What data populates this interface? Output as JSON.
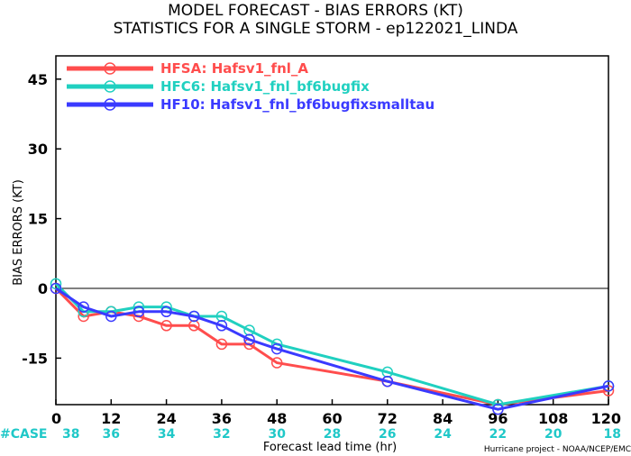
{
  "title_line1": "MODEL FORECAST - BIAS ERRORS (KT)",
  "title_line2": "STATISTICS FOR A SINGLE STORM - ep122021_LINDA",
  "ylabel": "BIAS ERRORS (KT)",
  "xlabel": "Forecast lead time (hr)",
  "case_label": "#CASE",
  "credit": "Hurricane project - NOAA/NCEP/EMC",
  "chart_data": {
    "type": "line",
    "xlim": [
      0,
      120
    ],
    "ylim": [
      -25,
      50
    ],
    "x_ticks": [
      0,
      12,
      24,
      36,
      48,
      60,
      72,
      84,
      96,
      108,
      120
    ],
    "y_ticks": [
      -15,
      0,
      15,
      30,
      45
    ],
    "cases": [
      38,
      36,
      34,
      32,
      30,
      28,
      26,
      24,
      22,
      20,
      18
    ],
    "zero_line": true,
    "legend_position": "top-left",
    "series": [
      {
        "name": "HFSA: Hafsv1_fnl_A",
        "color": "#ff4d4d",
        "x": [
          0,
          6,
          12,
          18,
          24,
          30,
          36,
          42,
          48,
          72,
          96,
          120
        ],
        "y": [
          0,
          -6,
          -5,
          -6,
          -8,
          -8,
          -12,
          -12,
          -16,
          -20,
          -25,
          -22
        ]
      },
      {
        "name": "HFC6: Hafsv1_fnl_bf6bugfix",
        "color": "#20d0c0",
        "x": [
          0,
          6,
          12,
          18,
          24,
          30,
          36,
          42,
          48,
          72,
          96,
          120
        ],
        "y": [
          1,
          -5,
          -5,
          -4,
          -4,
          -6,
          -6,
          -9,
          -12,
          -18,
          -25,
          -21
        ]
      },
      {
        "name": "HF10: Hafsv1_fnl_bf6bugfixsmalltau",
        "color": "#3a3aff",
        "x": [
          0,
          6,
          12,
          18,
          24,
          30,
          36,
          42,
          48,
          72,
          96,
          120
        ],
        "y": [
          0,
          -4,
          -6,
          -5,
          -5,
          -6,
          -8,
          -11,
          -13,
          -20,
          -26,
          -21
        ]
      }
    ]
  }
}
